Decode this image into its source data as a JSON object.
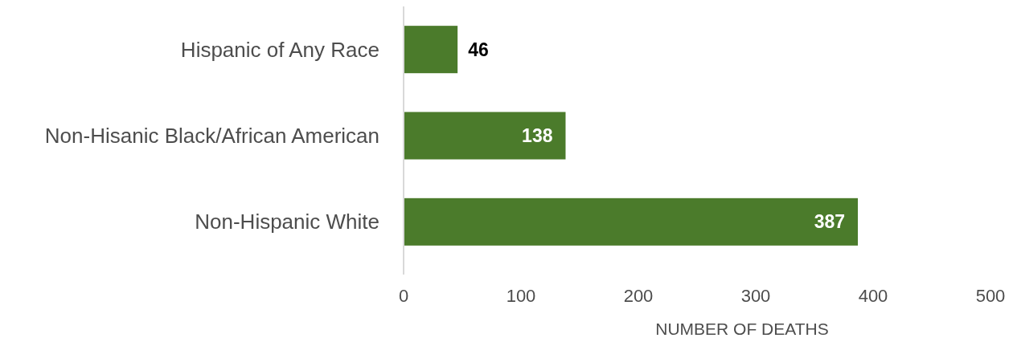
{
  "chart_data": {
    "type": "bar",
    "orientation": "horizontal",
    "categories": [
      "Hispanic of Any Race",
      "Non-Hisanic Black/African American",
      "Non-Hispanic White"
    ],
    "values": [
      46,
      138,
      387
    ],
    "color": "#4b7b2b",
    "xlim": [
      0,
      500
    ],
    "xticks": [
      0,
      100,
      200,
      300,
      400,
      500
    ],
    "xlabel": "NUMBER OF DEATHS",
    "data_labels": true,
    "grid": false
  }
}
